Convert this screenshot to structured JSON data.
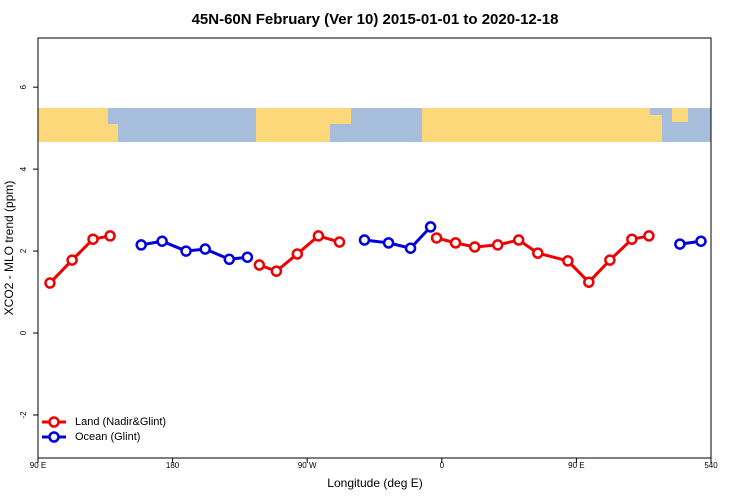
{
  "chart_data": {
    "type": "line",
    "title": "45N-60N February (Ver 10)   2015-01-01 to 2020-12-18",
    "x_label": "Longitude (deg E)",
    "y_label": "XCO2 - MLO trend (ppm)",
    "xlim": [
      90,
      540
    ],
    "ylim": [
      -3.05,
      7.2
    ],
    "xticks": [
      {
        "value": 90,
        "label": "90 E"
      },
      180,
      {
        "value": 270,
        "label": "90 W"
      },
      {
        "value": 360,
        "label": "0"
      },
      {
        "value": 450,
        "label": "90 E"
      },
      540
    ],
    "yticks": [
      -2,
      0,
      2,
      4,
      6
    ],
    "legend": "bottom-left",
    "series": [
      {
        "name": "Land (Nadir&Glint)",
        "color": "#ee0000",
        "x": [
          98,
          112.8,
          126.8,
          138.2,
          null,
          238,
          249.4,
          263.4,
          277.5,
          291.6,
          null,
          356.5,
          369.2,
          382,
          397.4,
          411.4,
          424.2,
          444.3,
          458.3,
          472.4,
          487.1,
          498.5
        ],
        "values": [
          1.22,
          1.78,
          2.29,
          2.37,
          null,
          1.66,
          1.51,
          1.93,
          2.37,
          2.22,
          null,
          2.32,
          2.2,
          2.1,
          2.15,
          2.27,
          1.95,
          1.76,
          1.24,
          1.78,
          2.29,
          2.37
        ]
      },
      {
        "name": "Ocean (Glint)",
        "color": "#0000dd",
        "x": [
          159,
          173,
          189,
          201.8,
          217.9,
          230,
          null,
          308.3,
          324.4,
          339.1,
          352.5,
          null,
          519.2,
          533.3
        ],
        "values": [
          2.15,
          2.24,
          2.0,
          2.05,
          1.8,
          1.85,
          null,
          2.27,
          2.2,
          2.07,
          2.59,
          null,
          2.17,
          2.24
        ]
      }
    ]
  }
}
